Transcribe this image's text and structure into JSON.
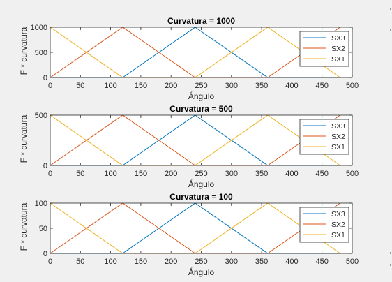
{
  "figure": {
    "background": "#f0f0f0",
    "axes_background": "#ffffff"
  },
  "chart_data": [
    {
      "type": "line",
      "title": "Curvatura = 1000",
      "xlabel": "Ángulo",
      "ylabel": "F * curvatura",
      "xlim": [
        0,
        500
      ],
      "ylim": [
        0,
        1000
      ],
      "xticks": [
        0,
        50,
        100,
        150,
        200,
        250,
        300,
        350,
        400,
        450,
        500
      ],
      "yticks": [
        0,
        500,
        1000
      ],
      "grid": false,
      "legend_position": "top-right",
      "series": [
        {
          "name": "SX3",
          "color": "#0072bd",
          "x": [
            0,
            120,
            240,
            360,
            480
          ],
          "y": [
            0,
            0,
            1000,
            0,
            0
          ]
        },
        {
          "name": "SX2",
          "color": "#d95319",
          "x": [
            0,
            120,
            240,
            360,
            480
          ],
          "y": [
            0,
            1000,
            0,
            0,
            1000
          ]
        },
        {
          "name": "SX1",
          "color": "#edb120",
          "x": [
            0,
            120,
            240,
            360,
            480
          ],
          "y": [
            1000,
            0,
            0,
            1000,
            0
          ]
        }
      ]
    },
    {
      "type": "line",
      "title": "Curvatura = 500",
      "xlabel": "Ángulo",
      "ylabel": "F * curvatura",
      "xlim": [
        0,
        500
      ],
      "ylim": [
        0,
        500
      ],
      "xticks": [
        0,
        50,
        100,
        150,
        200,
        250,
        300,
        350,
        400,
        450,
        500
      ],
      "yticks": [
        0,
        500
      ],
      "grid": false,
      "legend_position": "top-right",
      "series": [
        {
          "name": "SX3",
          "color": "#0072bd",
          "x": [
            0,
            120,
            240,
            360,
            480
          ],
          "y": [
            0,
            0,
            500,
            0,
            0
          ]
        },
        {
          "name": "SX2",
          "color": "#d95319",
          "x": [
            0,
            120,
            240,
            360,
            480
          ],
          "y": [
            0,
            500,
            0,
            0,
            500
          ]
        },
        {
          "name": "SX1",
          "color": "#edb120",
          "x": [
            0,
            120,
            240,
            360,
            480
          ],
          "y": [
            500,
            0,
            0,
            500,
            0
          ]
        }
      ]
    },
    {
      "type": "line",
      "title": "Curvatura = 100",
      "xlabel": "Ángulo",
      "ylabel": "F * curvatura",
      "xlim": [
        0,
        500
      ],
      "ylim": [
        0,
        100
      ],
      "xticks": [
        0,
        50,
        100,
        150,
        200,
        250,
        300,
        350,
        400,
        450,
        500
      ],
      "yticks": [
        0,
        50,
        100
      ],
      "grid": false,
      "legend_position": "top-right",
      "series": [
        {
          "name": "SX3",
          "color": "#0072bd",
          "x": [
            0,
            120,
            240,
            360,
            480
          ],
          "y": [
            0,
            0,
            100,
            0,
            0
          ]
        },
        {
          "name": "SX2",
          "color": "#d95319",
          "x": [
            0,
            120,
            240,
            360,
            480
          ],
          "y": [
            0,
            100,
            0,
            0,
            100
          ]
        },
        {
          "name": "SX1",
          "color": "#edb120",
          "x": [
            0,
            120,
            240,
            360,
            480
          ],
          "y": [
            100,
            0,
            0,
            100,
            0
          ]
        }
      ]
    }
  ]
}
